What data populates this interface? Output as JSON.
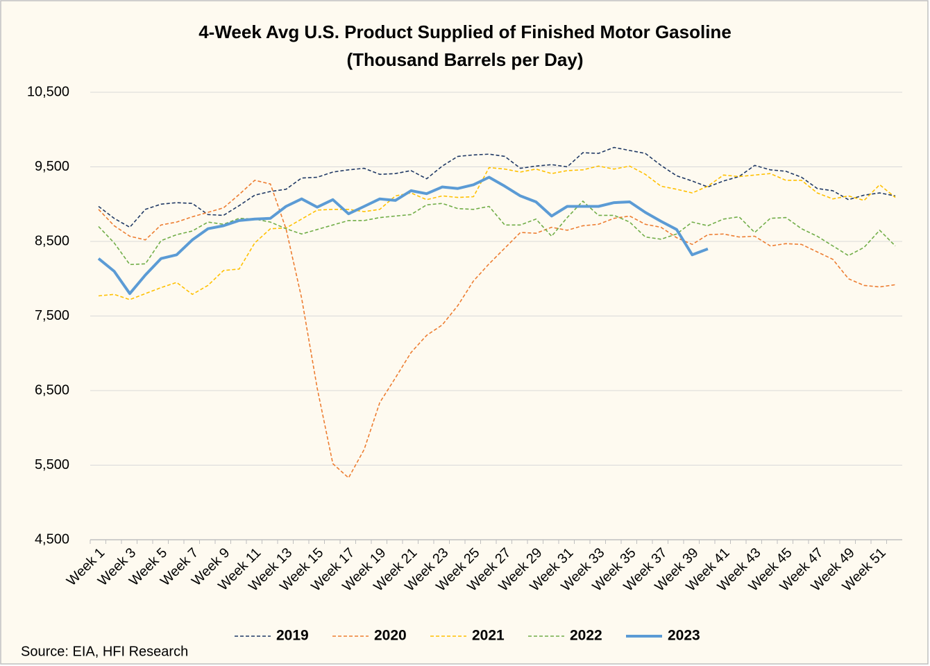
{
  "chart_data": {
    "type": "line",
    "title": [
      "4-Week Avg U.S. Product Supplied of Finished Motor Gasoline",
      "(Thousand Barrels per Day)"
    ],
    "source": "Source: EIA, HFI Research",
    "categories": [
      "Week 1",
      null,
      "Week 3",
      null,
      "Week 5",
      null,
      "Week 7",
      null,
      "Week 9",
      null,
      "Week 11",
      null,
      "Week 13",
      null,
      "Week 15",
      null,
      "Week 17",
      null,
      "Week 19",
      null,
      "Week 21",
      null,
      "Week 23",
      null,
      "Week 25",
      null,
      "Week 27",
      null,
      "Week 29",
      null,
      "Week 31",
      null,
      "Week 33",
      null,
      "Week 35",
      null,
      "Week 37",
      null,
      "Week 39",
      null,
      "Week 41",
      null,
      "Week 43",
      null,
      "Week 45",
      null,
      "Week 47",
      null,
      "Week 49",
      null,
      "Week 51",
      null
    ],
    "ylim": [
      4500,
      10500
    ],
    "yticks": [
      {
        "value": 4500,
        "label": "4,500"
      },
      {
        "value": 5500,
        "label": "5,500"
      },
      {
        "value": 6500,
        "label": "6,500"
      },
      {
        "value": 7500,
        "label": "7,500"
      },
      {
        "value": 8500,
        "label": "8,500"
      },
      {
        "value": 9500,
        "label": "9,500"
      },
      {
        "value": 10500,
        "label": "10,500"
      }
    ],
    "grid": true,
    "legend": "bottom",
    "series": [
      {
        "name": "2019",
        "color": "#1f3864",
        "dashed": true,
        "values": [
          8970,
          8810,
          8690,
          8930,
          9000,
          9020,
          9010,
          8860,
          8850,
          8980,
          9120,
          9170,
          9200,
          9350,
          9360,
          9430,
          9460,
          9480,
          9400,
          9410,
          9450,
          9340,
          9510,
          9640,
          9660,
          9670,
          9640,
          9480,
          9510,
          9530,
          9500,
          9690,
          9680,
          9760,
          9720,
          9680,
          9520,
          9380,
          9310,
          9230,
          9310,
          9370,
          9520,
          9460,
          9440,
          9360,
          9210,
          9180,
          9060,
          9120,
          9150,
          9110
        ]
      },
      {
        "name": "2020",
        "color": "#ed7d31",
        "dashed": true,
        "values": [
          8930,
          8710,
          8570,
          8520,
          8720,
          8760,
          8830,
          8890,
          8950,
          9130,
          9320,
          9270,
          8670,
          7740,
          6530,
          5520,
          5330,
          5710,
          6340,
          6670,
          7010,
          7240,
          7380,
          7640,
          7970,
          8200,
          8410,
          8620,
          8610,
          8690,
          8650,
          8710,
          8730,
          8810,
          8840,
          8730,
          8690,
          8550,
          8460,
          8590,
          8600,
          8560,
          8570,
          8440,
          8470,
          8460,
          8360,
          8260,
          8000,
          7910,
          7890,
          7920
        ]
      },
      {
        "name": "2021",
        "color": "#ffc000",
        "dashed": true,
        "values": [
          7770,
          7790,
          7720,
          7800,
          7880,
          7950,
          7790,
          7910,
          8110,
          8130,
          8480,
          8670,
          8680,
          8800,
          8920,
          8930,
          8930,
          8900,
          8930,
          9110,
          9150,
          9060,
          9110,
          9090,
          9100,
          9490,
          9470,
          9430,
          9470,
          9410,
          9450,
          9460,
          9510,
          9470,
          9510,
          9400,
          9240,
          9200,
          9150,
          9240,
          9390,
          9370,
          9390,
          9410,
          9320,
          9320,
          9150,
          9070,
          9110,
          9050,
          9260,
          9090
        ]
      },
      {
        "name": "2022",
        "color": "#70ad47",
        "dashed": true,
        "values": [
          8700,
          8480,
          8190,
          8200,
          8510,
          8590,
          8640,
          8760,
          8730,
          8810,
          8800,
          8760,
          8670,
          8600,
          8660,
          8720,
          8780,
          8780,
          8820,
          8840,
          8860,
          8990,
          9010,
          8940,
          8930,
          8970,
          8720,
          8720,
          8800,
          8570,
          8820,
          9040,
          8850,
          8850,
          8760,
          8560,
          8530,
          8600,
          8760,
          8710,
          8800,
          8830,
          8620,
          8810,
          8820,
          8670,
          8570,
          8440,
          8310,
          8420,
          8650,
          8440
        ]
      },
      {
        "name": "2023",
        "color": "#5b9bd5",
        "dashed": false,
        "values": [
          8270,
          8100,
          7800,
          8050,
          8270,
          8320,
          8520,
          8670,
          8710,
          8780,
          8800,
          8810,
          8970,
          9070,
          8960,
          9060,
          8870,
          8970,
          9070,
          9050,
          9180,
          9140,
          9230,
          9210,
          9260,
          9360,
          9240,
          9110,
          9030,
          8840,
          8970,
          8970,
          8970,
          9020,
          9030,
          8890,
          8770,
          8660,
          8320,
          8400,
          null,
          null,
          null,
          null,
          null,
          null,
          null,
          null,
          null,
          null,
          null,
          null
        ]
      }
    ]
  }
}
